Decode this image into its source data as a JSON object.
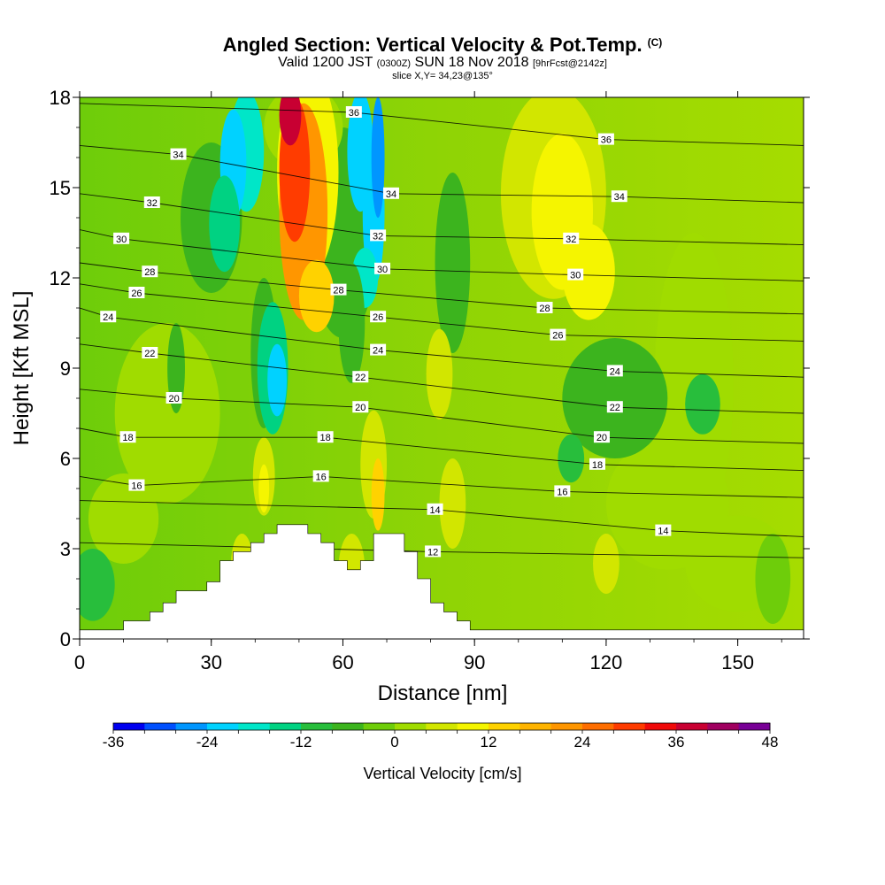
{
  "chart_data": {
    "type": "heatmap",
    "title": "Angled Section: Vertical Velocity & Pot.Temp.",
    "title_mark": "(C)",
    "subtitle_valid": "Valid 1200 JST",
    "subtitle_utc": "(0300Z)",
    "subtitle_date": "SUN 18 Nov 2018",
    "subtitle_run": "[9hrFcst@2142z]",
    "slice": "slice X,Y= 34,23@135°",
    "xlabel": "Distance [nm]",
    "ylabel": "Height [Kft MSL]",
    "xlim": [
      0,
      165
    ],
    "ylim": [
      0,
      18
    ],
    "x_ticks": [
      0,
      30,
      60,
      90,
      120,
      150
    ],
    "y_ticks": [
      0,
      3,
      6,
      9,
      12,
      15,
      18
    ],
    "colorbar": {
      "label": "Vertical Velocity [cm/s]",
      "min": -36,
      "max": 48,
      "step": 4,
      "tick_labels": [
        -36,
        -24,
        -12,
        0,
        12,
        24,
        36,
        48
      ],
      "colors": [
        "#0000f0",
        "#0050ff",
        "#0096ff",
        "#00d2ff",
        "#00e6c8",
        "#00d282",
        "#28be3c",
        "#3cb41e",
        "#6ecd0a",
        "#a0dc00",
        "#d2e600",
        "#f5f500",
        "#ffd200",
        "#ffb400",
        "#ff9600",
        "#ff6e00",
        "#ff3c00",
        "#f00a0a",
        "#c80032",
        "#a00060",
        "#780096"
      ]
    },
    "theta_contours": [
      {
        "value": 12,
        "x": 80.5,
        "y": 2.9
      },
      {
        "value": 14,
        "x": 81,
        "y": 4.3
      },
      {
        "value": 14,
        "x": 133,
        "y": 3.6
      },
      {
        "value": 16,
        "x": 13,
        "y": 5.1
      },
      {
        "value": 16,
        "x": 55,
        "y": 5.4
      },
      {
        "value": 16,
        "x": 110,
        "y": 4.9
      },
      {
        "value": 18,
        "x": 11,
        "y": 6.7
      },
      {
        "value": 18,
        "x": 56,
        "y": 6.7
      },
      {
        "value": 18,
        "x": 118,
        "y": 5.8
      },
      {
        "value": 20,
        "x": 21.5,
        "y": 8.0
      },
      {
        "value": 20,
        "x": 64,
        "y": 7.7
      },
      {
        "value": 20,
        "x": 119,
        "y": 6.7
      },
      {
        "value": 22,
        "x": 16,
        "y": 9.5
      },
      {
        "value": 22,
        "x": 64,
        "y": 8.7
      },
      {
        "value": 22,
        "x": 122,
        "y": 7.7
      },
      {
        "value": 24,
        "x": 6.5,
        "y": 10.7
      },
      {
        "value": 24,
        "x": 68,
        "y": 9.6
      },
      {
        "value": 24,
        "x": 122,
        "y": 8.9
      },
      {
        "value": 26,
        "x": 13,
        "y": 11.5
      },
      {
        "value": 26,
        "x": 68,
        "y": 10.7
      },
      {
        "value": 26,
        "x": 109,
        "y": 10.1
      },
      {
        "value": 28,
        "x": 16,
        "y": 12.2
      },
      {
        "value": 28,
        "x": 59,
        "y": 11.6
      },
      {
        "value": 28,
        "x": 106,
        "y": 11.0
      },
      {
        "value": 30,
        "x": 9.5,
        "y": 13.3
      },
      {
        "value": 30,
        "x": 69,
        "y": 12.3
      },
      {
        "value": 30,
        "x": 113,
        "y": 12.1
      },
      {
        "value": 32,
        "x": 16.5,
        "y": 14.5
      },
      {
        "value": 32,
        "x": 68,
        "y": 13.4
      },
      {
        "value": 32,
        "x": 112,
        "y": 13.3
      },
      {
        "value": 34,
        "x": 22.5,
        "y": 16.1
      },
      {
        "value": 34,
        "x": 71,
        "y": 14.8
      },
      {
        "value": 34,
        "x": 123,
        "y": 14.7
      },
      {
        "value": 36,
        "x": 62.5,
        "y": 17.5
      },
      {
        "value": 36,
        "x": 120,
        "y": 16.6
      }
    ],
    "terrain": [
      [
        0,
        0.3
      ],
      [
        10,
        0.3
      ],
      [
        10,
        0.6
      ],
      [
        16,
        0.6
      ],
      [
        16,
        0.9
      ],
      [
        19,
        0.9
      ],
      [
        19,
        1.2
      ],
      [
        22,
        1.2
      ],
      [
        22,
        1.6
      ],
      [
        29,
        1.6
      ],
      [
        29,
        1.9
      ],
      [
        32,
        1.9
      ],
      [
        32,
        2.6
      ],
      [
        35,
        2.6
      ],
      [
        35,
        2.9
      ],
      [
        39,
        2.9
      ],
      [
        39,
        3.2
      ],
      [
        42,
        3.2
      ],
      [
        42,
        3.5
      ],
      [
        45,
        3.5
      ],
      [
        45,
        3.8
      ],
      [
        52,
        3.8
      ],
      [
        52,
        3.5
      ],
      [
        55,
        3.5
      ],
      [
        55,
        3.2
      ],
      [
        58,
        3.2
      ],
      [
        58,
        2.6
      ],
      [
        61,
        2.6
      ],
      [
        61,
        2.3
      ],
      [
        64,
        2.3
      ],
      [
        64,
        2.6
      ],
      [
        67,
        2.6
      ],
      [
        67,
        3.5
      ],
      [
        74,
        3.5
      ],
      [
        74,
        2.9
      ],
      [
        77,
        2.9
      ],
      [
        77,
        2.0
      ],
      [
        80,
        2.0
      ],
      [
        80,
        1.2
      ],
      [
        83,
        1.2
      ],
      [
        83,
        0.9
      ],
      [
        86,
        0.9
      ],
      [
        86,
        0.6
      ],
      [
        89,
        0.6
      ],
      [
        89,
        0.3
      ],
      [
        165,
        0.3
      ],
      [
        165,
        0
      ],
      [
        0,
        0
      ]
    ]
  }
}
